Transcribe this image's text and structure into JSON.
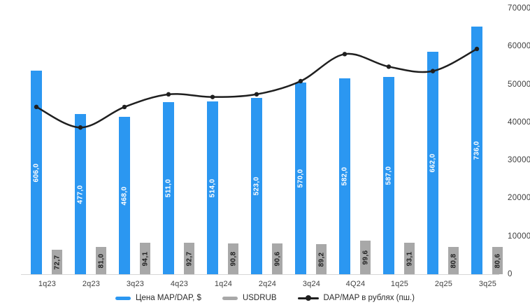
{
  "chart_data": {
    "type": "combo",
    "categories": [
      "1q23",
      "2q23",
      "3q23",
      "4q23",
      "1q24",
      "2q24",
      "3q24",
      "4Q24",
      "1q25",
      "2q25",
      "3q25"
    ],
    "series": [
      {
        "name": "Цена MAP/DAP, $",
        "type": "bar",
        "color": "#2b97f1",
        "values": [
          606.0,
          477.0,
          468.0,
          511.0,
          514.0,
          523.0,
          570.0,
          582.0,
          587.0,
          662.0,
          736.0
        ],
        "labels": [
          "606,0",
          "477,0",
          "468,0",
          "511,0",
          "514,0",
          "523,0",
          "570,0",
          "582,0",
          "587,0",
          "662,0",
          "736,0"
        ]
      },
      {
        "name": "USDRUB",
        "type": "bar",
        "color": "#a8a8a8",
        "values": [
          72.7,
          81.0,
          94.1,
          92.7,
          90.8,
          90.6,
          89.2,
          99.6,
          93.1,
          80.8,
          80.6
        ],
        "labels": [
          "72,7",
          "81,0",
          "94,1",
          "92,7",
          "90,8",
          "90,6",
          "89,2",
          "99,6",
          "93,1",
          "80,8",
          "80,6"
        ]
      },
      {
        "name": "DAP/MAP в рублях (пш.)",
        "type": "line",
        "color": "#1f1f1f",
        "axis": "right",
        "values": [
          44056,
          38637,
          44039,
          47370,
          46671,
          47384,
          50844,
          57967,
          54650,
          53490,
          59322
        ]
      }
    ],
    "hidden_bar_axis_max": 790,
    "right_axis": {
      "min": 0,
      "max": 70000,
      "step": 10000,
      "ticks": [
        "0",
        "10000",
        "20000",
        "30000",
        "40000",
        "50000",
        "60000",
        "70000"
      ]
    },
    "grid": "off",
    "legend_position": "bottom"
  }
}
